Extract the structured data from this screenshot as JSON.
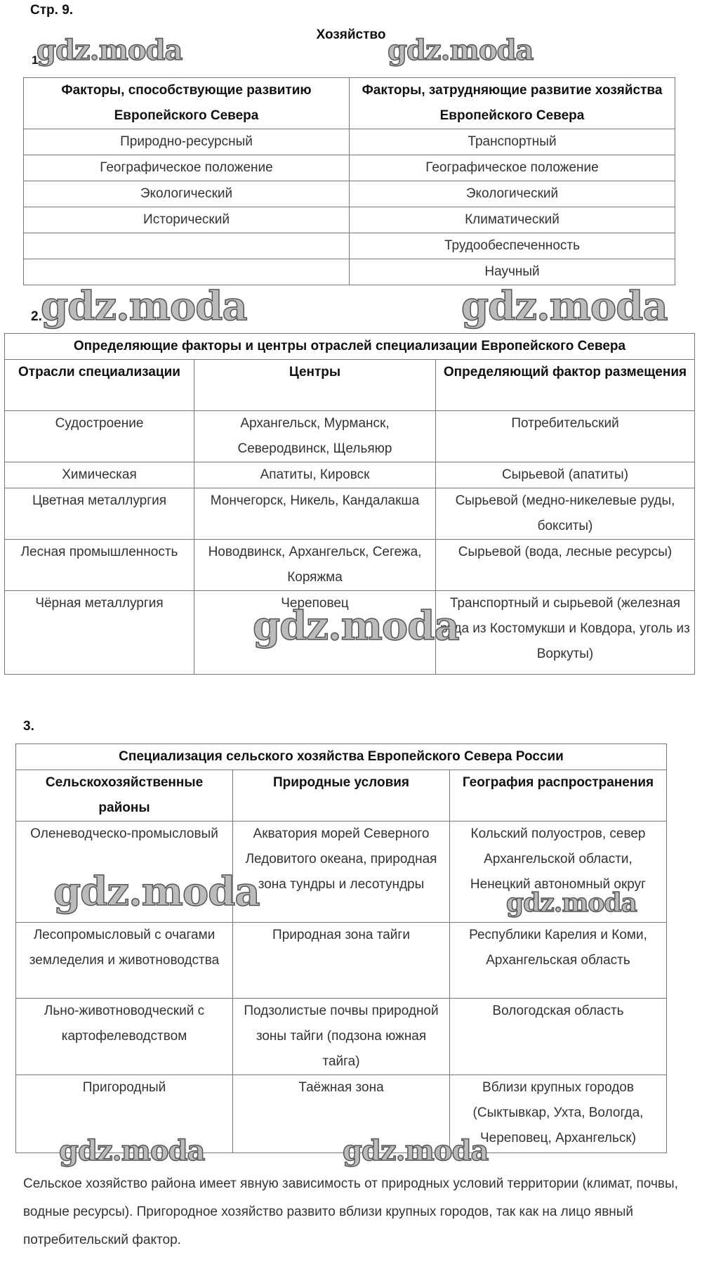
{
  "page_label": "Стр. 9.",
  "title": "Хозяйство",
  "watermark": "gdz.moda",
  "task1": {
    "number": "1.",
    "headers": [
      "Факторы, способствующие развитию Европейского Севера",
      "Факторы, затрудняющие развитие хозяйства Европейского Севера"
    ],
    "rows": [
      [
        "Природно-ресурсный",
        "Транспортный"
      ],
      [
        "Географическое положение",
        "Географическое положение"
      ],
      [
        "Экологический",
        "Экологический"
      ],
      [
        "Исторический",
        "Климатический"
      ],
      [
        "",
        "Трудообеспеченность"
      ],
      [
        "",
        "Научный"
      ]
    ]
  },
  "task2": {
    "number": "2.",
    "caption": "Определяющие факторы и центры отраслей специализации Европейского Севера",
    "headers": [
      "Отрасли специализации",
      "Центры",
      "Определяющий фактор размещения"
    ],
    "rows": [
      [
        "Судостроение",
        "Архангельск, Мурманск, Северодвинск, Щельяюр",
        "Потребительский"
      ],
      [
        "Химическая",
        "Апатиты, Кировск",
        "Сырьевой (апатиты)"
      ],
      [
        "Цветная металлургия",
        "Мончегорск, Никель, Кандалакша",
        "Сырьевой (медно-никелевые руды, бокситы)"
      ],
      [
        "Лесная промышленность",
        "Новодвинск, Архангельск, Сегежа, Коряжма",
        "Сырьевой (вода, лесные ресурсы)"
      ],
      [
        "Чёрная металлургия",
        "Череповец",
        "Транспортный и сырьевой (железная руда из Костомукши и Ковдора, уголь из Воркуты)"
      ]
    ]
  },
  "task3": {
    "number": "3.",
    "caption": "Специализация сельского хозяйства Европейского Севера России",
    "headers": [
      "Сельскохозяйственные районы",
      "Природные условия",
      "География распространения"
    ],
    "rows": [
      [
        "Оленеводческо-промысловый",
        "Акватория морей Северного Ледовитого океана, природная зона тундры и лесотундры",
        "Кольский полуостров, север Архангельской области, Ненецкий автономный округ"
      ],
      [
        "Лесопромысловый с очагами земледелия и животноводства",
        "Природная зона тайги",
        "Республики Карелия и Коми, Архангельская область"
      ],
      [
        "Льно-животноводческий с картофелеводством",
        "Подзолистые почвы природной зоны тайги (подзона южная тайга)",
        "Вологодская область"
      ],
      [
        "Пригородный",
        "Таёжная зона",
        "Вблизи крупных городов (Сыктывкар, Ухта, Вологда, Череповец, Архангельск)"
      ]
    ],
    "conclusion": "Сельское хозяйство района имеет явную зависимость от природных условий территории (климат, почвы, водные ресурсы). Пригородное хозяйство развито вблизи крупных городов, так как на лицо явный потребительский фактор."
  }
}
